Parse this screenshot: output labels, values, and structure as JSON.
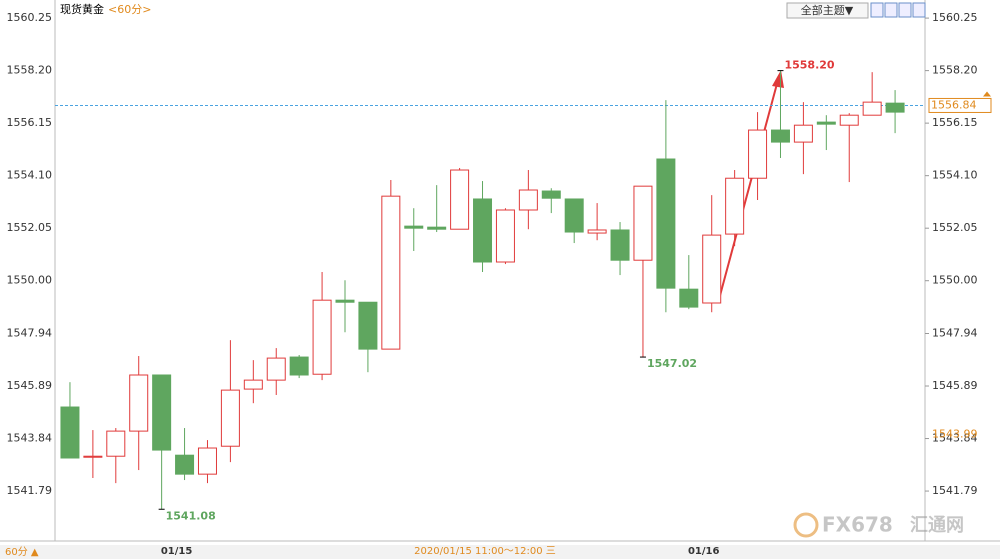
{
  "chart_data": {
    "type": "candlestick",
    "title": "现货黄金",
    "subtitle": "<60分>",
    "theme_button": "全部主题▼",
    "period_label": "60分 ▲",
    "crosshair_label": "2020/01/15 11:00～12:00 三",
    "categories": [
      null,
      null,
      null,
      null,
      null,
      "01/15",
      null,
      null,
      null,
      null,
      null,
      null,
      null,
      null,
      null,
      null,
      null,
      null,
      null,
      null,
      null,
      null,
      null,
      null,
      null,
      null,
      null,
      null,
      "01/16",
      null,
      null,
      null,
      null,
      null,
      null,
      null,
      null
    ],
    "series": [
      {
        "open": [
          1545.07,
          1543.11,
          1543.15,
          1544.13,
          1546.32,
          1543.19,
          1542.45,
          1543.54,
          1545.77,
          1546.12,
          1547.02,
          1546.35,
          1549.24,
          1549.16,
          1547.33,
          1552.13,
          1552.09,
          1552.01,
          1553.19,
          1550.73,
          1552.76,
          1553.5,
          1553.19,
          1551.86,
          1551.98,
          1550.8,
          1554.75,
          1549.67,
          1549.13,
          1551.82,
          1554.0,
          1555.88,
          1555.41,
          1556.19,
          1556.07,
          1556.46,
          1556.93
        ],
        "high": [
          1546.04,
          1544.17,
          1544.25,
          1547.06,
          1546.32,
          1544.25,
          1543.78,
          1547.68,
          1546.9,
          1547.37,
          1547.1,
          1550.34,
          1550.02,
          1549.16,
          1553.93,
          1552.83,
          1553.73,
          1554.4,
          1553.89,
          1552.83,
          1554.32,
          1553.61,
          1553.19,
          1553.03,
          1552.29,
          1553.69,
          1557.05,
          1551.0,
          1553.34,
          1554.32,
          1556.58,
          1558.2,
          1556.97,
          1556.46,
          1556.54,
          1558.14,
          1557.44
        ],
        "low": [
          1543.08,
          1542.3,
          1542.1,
          1542.61,
          1541.08,
          1542.22,
          1542.1,
          1542.92,
          1545.22,
          1545.54,
          1546.2,
          1546.12,
          1547.99,
          1546.43,
          1547.33,
          1551.16,
          1551.9,
          1552.01,
          1550.34,
          1550.65,
          1552.01,
          1552.64,
          1551.47,
          1551.58,
          1550.22,
          1547.02,
          1548.77,
          1548.89,
          1548.77,
          1551.35,
          1553.15,
          1554.79,
          1554.16,
          1555.1,
          1553.85,
          1556.46,
          1555.76
        ],
        "close": [
          1543.08,
          1543.15,
          1544.13,
          1546.32,
          1543.39,
          1542.45,
          1543.47,
          1545.73,
          1546.12,
          1546.98,
          1546.32,
          1549.24,
          1549.16,
          1547.33,
          1553.3,
          1552.05,
          1552.01,
          1554.32,
          1550.73,
          1552.76,
          1553.54,
          1553.22,
          1551.9,
          1551.98,
          1550.8,
          1553.69,
          1549.71,
          1548.97,
          1551.78,
          1554.0,
          1555.88,
          1555.41,
          1556.07,
          1556.11,
          1556.46,
          1556.97,
          1556.58
        ],
        "high_labels": [
          null,
          null,
          null,
          null,
          null,
          null,
          null,
          null,
          null,
          null,
          null,
          null,
          null,
          null,
          null,
          null,
          null,
          null,
          null,
          null,
          null,
          null,
          null,
          null,
          null,
          null,
          null,
          null,
          null,
          null,
          null,
          "1558.20",
          null,
          null,
          null,
          null,
          null
        ],
        "low_labels": [
          null,
          null,
          null,
          null,
          "1541.08",
          null,
          null,
          null,
          null,
          null,
          null,
          null,
          null,
          null,
          null,
          null,
          null,
          null,
          null,
          null,
          null,
          null,
          null,
          null,
          null,
          "1547.02",
          null,
          null,
          null,
          null,
          null,
          null,
          null,
          null,
          null,
          null,
          null
        ]
      }
    ],
    "up_color": "#e03a3a",
    "down_color": "#5fa65f",
    "ylim": [
      1539.88,
      1560.8
    ],
    "yticks": [
      1560.25,
      {
        "value": 1558.2,
        "label": "1558.20"
      },
      1556.15,
      {
        "value": 1554.1,
        "label": "1554.10"
      },
      1552.05,
      {
        "value": 1550,
        "label": "1550.00"
      },
      1547.94,
      1545.89,
      1543.84,
      1541.79
    ],
    "price_line": 1556.84,
    "price_marker": 1543.99,
    "watermark": [
      "FX678",
      "汇通网"
    ]
  }
}
